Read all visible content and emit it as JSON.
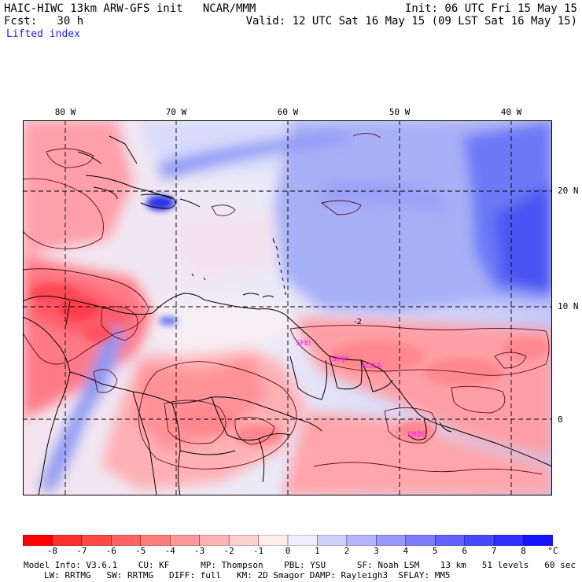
{
  "header": {
    "title": "HAIC-HIWC 13km ARW-GFS init   NCAR/MMM",
    "init": "Init: 06 UTC Fri 15 May 15",
    "fcst": "Fcst:   30 h",
    "valid": "Valid: 12 UTC Sat 16 May 15 (09 LST Sat 16 May 15)",
    "field": "Lifted index"
  },
  "axes": {
    "longitudes": [
      "80 W",
      "70 W",
      "60 W",
      "50 W",
      "40 W"
    ],
    "latitudes": [
      "20 N",
      "10 N",
      "0"
    ]
  },
  "sites": [
    "SFEI",
    "SMJP",
    "SOCA",
    "SBBE"
  ],
  "contour_label": "-2",
  "legend": {
    "unit": "°C",
    "labels": [
      "-8",
      "-7",
      "-6",
      "-5",
      "-4",
      "-3",
      "-2",
      "-1",
      "0",
      "1",
      "2",
      "3",
      "4",
      "5",
      "6",
      "7",
      "8"
    ],
    "colors": [
      "#ff0000",
      "#ff2e2e",
      "#ff4848",
      "#ff6262",
      "#ff7c7c",
      "#ff9898",
      "#ffb4b4",
      "#ffd0d0",
      "#ffecec",
      "#eeeeff",
      "#d0d0ff",
      "#b4b4ff",
      "#9898ff",
      "#7c7cff",
      "#6262ff",
      "#4848ff",
      "#2e2eff",
      "#1414ff"
    ]
  },
  "footer": {
    "line1": "Model Info: V3.6.1    CU: KF      MP: Thompson    PBL: YSU      SF: Noah LSM    13 km   51 levels   60 sec",
    "line2": "LW: RRTMG   SW: RRTMG   DIFF: full   KM: 2D Smagor DAMP: Rayleigh3  SFLAY: MM5"
  }
}
